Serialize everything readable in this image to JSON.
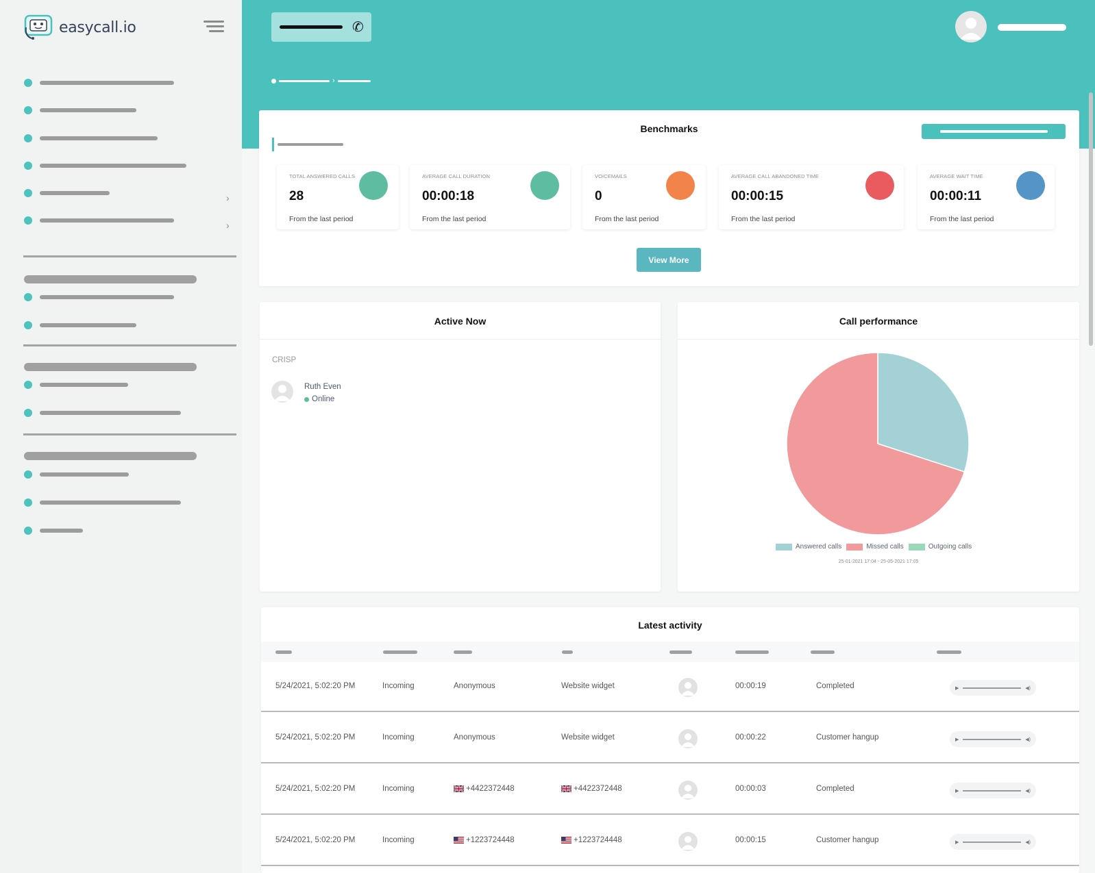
{
  "brand": {
    "name": "easycall.io"
  },
  "benchmarks": {
    "title": "Benchmarks",
    "view_more": "View More",
    "stats": [
      {
        "label": "TOTAL ANSWERED CALLS",
        "value": "28",
        "sub": "From the last period",
        "color": "#5ebda0"
      },
      {
        "label": "AVERAGE CALL DURATION",
        "value": "00:00:18",
        "sub": "From the last period",
        "color": "#5ebda0"
      },
      {
        "label": "VOICEMAILS",
        "value": "0",
        "sub": "From the last period",
        "color": "#f2834a"
      },
      {
        "label": "AVERAGE CALL ABANDONED TIME",
        "value": "00:00:15",
        "sub": "From the last period",
        "color": "#ea5b5f"
      },
      {
        "label": "AVERAGE WAIT TIME",
        "value": "00:00:11",
        "sub": "From the last period",
        "color": "#5494c6"
      }
    ]
  },
  "active_now": {
    "title": "Active Now",
    "group": "CRISP",
    "agent": {
      "name": "Ruth Even",
      "status": "Online"
    }
  },
  "call_performance": {
    "title": "Call performance",
    "range": "25-01-2021 17:04 - 25-05-2021 17:05"
  },
  "chart_data": {
    "type": "pie",
    "categories": [
      "Answered calls",
      "Missed calls",
      "Outgoing calls"
    ],
    "values": [
      30,
      70,
      0
    ],
    "colors": [
      "#a3d1d6",
      "#f2999b",
      "#9bd8b9"
    ],
    "legend": "bottom"
  },
  "latest_activity": {
    "title": "Latest activity",
    "rows": [
      {
        "date": "5/24/2021, 5:02:20 PM",
        "direction": "Incoming",
        "from": "Anonymous",
        "from_flag": "",
        "to": "Website widget",
        "to_flag": "",
        "duration": "00:00:19",
        "status": "Completed"
      },
      {
        "date": "5/24/2021, 5:02:20 PM",
        "direction": "Incoming",
        "from": "Anonymous",
        "from_flag": "",
        "to": "Website widget",
        "to_flag": "",
        "duration": "00:00:22",
        "status": "Customer hangup"
      },
      {
        "date": "5/24/2021, 5:02:20 PM",
        "direction": "Incoming",
        "from": "+4422372448",
        "from_flag": "uk",
        "to": "+4422372448",
        "to_flag": "uk",
        "duration": "00:00:03",
        "status": "Completed"
      },
      {
        "date": "5/24/2021, 5:02:20 PM",
        "direction": "Incoming",
        "from": "+1223724448",
        "from_flag": "us",
        "to": "+1223724448",
        "to_flag": "us",
        "duration": "00:00:15",
        "status": "Customer hangup"
      }
    ]
  },
  "colors": {
    "accent": "#4bc1bd",
    "sidebar_bg": "#f1f2f2"
  },
  "icons": [
    "logo-icon",
    "hamburger-icon",
    "phone-icon",
    "user-avatar-icon",
    "chevron-right-icon",
    "flag-uk-icon",
    "flag-us-icon",
    "play-icon",
    "volume-icon"
  ]
}
